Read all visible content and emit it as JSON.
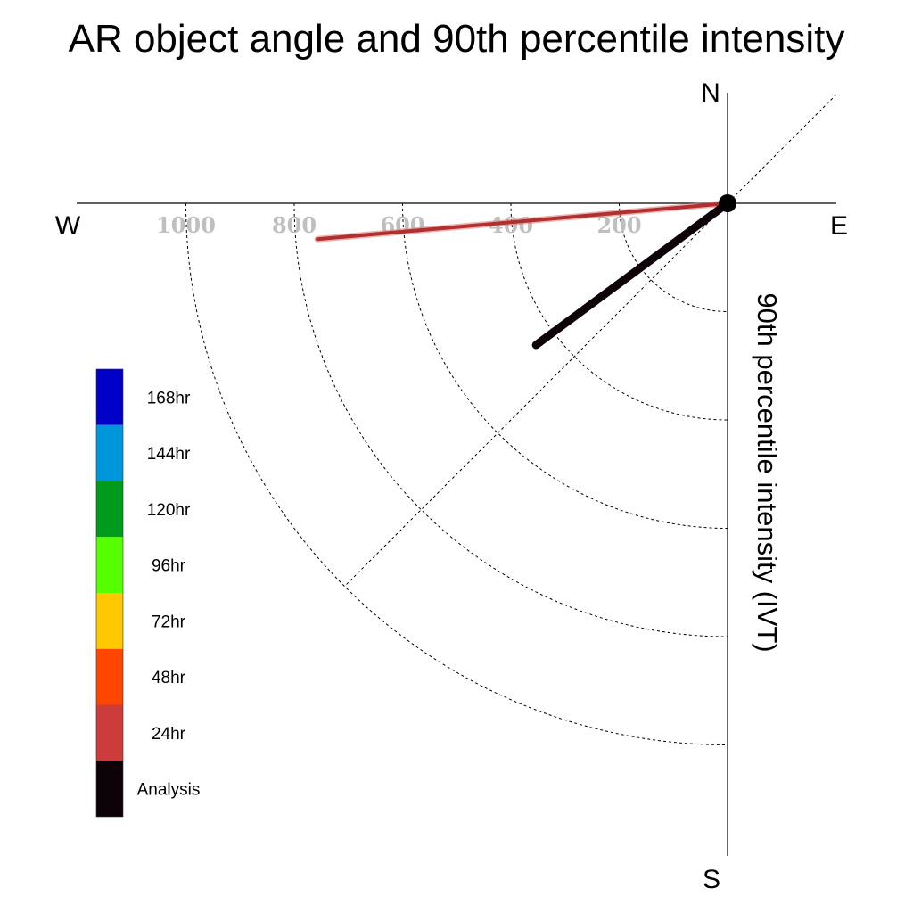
{
  "chart_data": {
    "type": "line",
    "subtype": "polar-quarter (SW quadrant)",
    "title": "AR object angle and 90th percentile intensity",
    "radial_label": "90th percentile intensity (IVT)",
    "compass": {
      "north": "N",
      "east": "E",
      "south": "S",
      "west": "W"
    },
    "radial_ticks": [
      200,
      400,
      600,
      800,
      1000
    ],
    "radial_range": [
      0,
      1200
    ],
    "grid": true,
    "series": [
      {
        "name": "24hr",
        "color": "#b03030",
        "angle_deg_from_east": 185,
        "intensity": 760
      },
      {
        "name": "Analysis",
        "color": "#0d0208",
        "angle_deg_from_east": 216.5,
        "intensity": 440
      }
    ],
    "legend": {
      "placement": "left",
      "items": [
        {
          "label": "168hr",
          "color": "#0000c8"
        },
        {
          "label": "144hr",
          "color": "#0096dc"
        },
        {
          "label": "120hr",
          "color": "#009b1c"
        },
        {
          "label": "96hr",
          "color": "#55ff00"
        },
        {
          "label": "72hr",
          "color": "#ffc800"
        },
        {
          "label": "48hr",
          "color": "#ff4600"
        },
        {
          "label": "24hr",
          "color": "#cc3c3c"
        },
        {
          "label": "Analysis",
          "color": "#0d0208"
        }
      ]
    }
  }
}
